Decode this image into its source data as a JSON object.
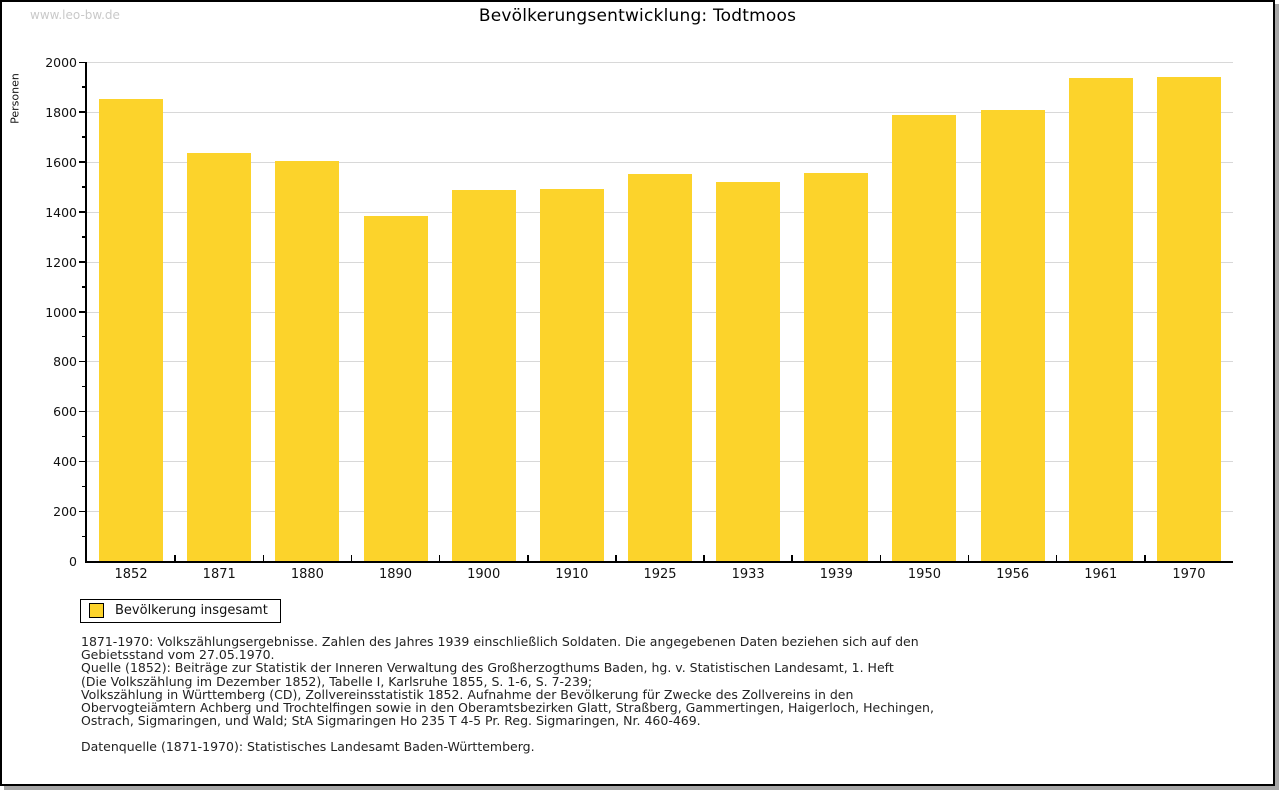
{
  "page": {
    "watermark": "www.leo-bw.de",
    "title": "Bevölkerungsentwicklung: Todtmoos"
  },
  "chart_data": {
    "type": "bar",
    "title": "Bevölkerungsentwicklung: Todtmoos",
    "xlabel": "",
    "ylabel": "Personen",
    "categories": [
      "1852",
      "1871",
      "1880",
      "1890",
      "1900",
      "1910",
      "1925",
      "1933",
      "1939",
      "1950",
      "1956",
      "1961",
      "1970"
    ],
    "values": [
      1850,
      1635,
      1602,
      1383,
      1487,
      1490,
      1552,
      1521,
      1556,
      1787,
      1806,
      1936,
      1940
    ],
    "ylim": [
      0,
      2000
    ],
    "ytick_major_step": 200,
    "ytick_minor_step": 100,
    "grid": true,
    "bar_color": "#FCD32B",
    "grid_color": "#d8d8d8",
    "legend_position": "bottom-left",
    "legend_label": "Bevölkerung insgesamt"
  },
  "legend": {
    "label": "Bevölkerung insgesamt"
  },
  "footer": {
    "lines": [
      "1871-1970: Volkszählungsergebnisse. Zahlen des Jahres 1939 einschließlich Soldaten. Die angegebenen Daten beziehen sich auf den",
      "Gebietsstand vom 27.05.1970.",
      "Quelle (1852): Beiträge zur Statistik der Inneren Verwaltung des Großherzogthums Baden, hg. v. Statistischen Landesamt, 1. Heft",
      "(Die Volkszählung im Dezember 1852), Tabelle I, Karlsruhe 1855, S. 1-6, S. 7-239;",
      "Volkszählung in Württemberg (CD), Zollvereinsstatistik 1852. Aufnahme der Bevölkerung für Zwecke des Zollvereins in den",
      "Obervogteiämtern Achberg und Trochtelfingen sowie in den Oberamtsbezirken Glatt, Straßberg, Gammertingen, Haigerloch, Hechingen,",
      "Ostrach, Sigmaringen, und Wald; StA Sigmaringen Ho 235 T 4-5 Pr. Reg. Sigmaringen, Nr. 460-469."
    ],
    "datasource": "Datenquelle (1871-1970): Statistisches Landesamt Baden-Württemberg."
  }
}
